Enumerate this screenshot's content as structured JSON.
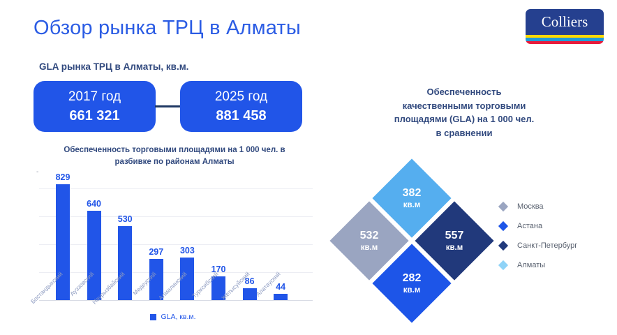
{
  "header": {
    "title": "Обзор рынка ТРЦ в Алматы",
    "logo_text": "Colliers",
    "logo_colors": {
      "box": "#25408f",
      "stripes": [
        "#ffd800",
        "#1f9cd8",
        "#e81a3b"
      ]
    }
  },
  "gla_section": {
    "title": "GLA рынка ТРЦ в Алматы, кв.м.",
    "boxes": [
      {
        "year": "2017 год",
        "value": "661 321"
      },
      {
        "year": "2025 год",
        "value": "881 458"
      }
    ],
    "box_color": "#2155e8"
  },
  "chart_data": [
    {
      "type": "bar",
      "title": "Обеспеченность торговыми площадями на 1 000 чел. в\nразбивке по районам Алматы",
      "categories": [
        "Бостандыкский",
        "Ауэзовский",
        "Наурызбайский",
        "Медеуский",
        "Алмалинский",
        "Турксибский",
        "Жетысуйский",
        "Алатауский"
      ],
      "values": [
        829,
        640,
        530,
        297,
        303,
        170,
        86,
        44
      ],
      "xlabel": "",
      "ylabel": "",
      "ylim": [
        0,
        900
      ],
      "grid": true,
      "y_axis_tick": "-",
      "bar_color": "#2155e8",
      "legend": {
        "label": "GLA, кв.м.",
        "color": "#2155e8",
        "position": "bottom"
      }
    },
    {
      "type": "diamond-comparison",
      "title": "Обеспеченность\nкачественными торговыми\nплощадями (GLA) на 1 000 чел.\nв сравнении",
      "series": [
        {
          "name": "Алматы",
          "value": "382",
          "unit": "кв.м",
          "color": "#55aeef",
          "position": "top"
        },
        {
          "name": "Москва",
          "value": "532",
          "unit": "кв.м",
          "color": "#9aa5c1",
          "position": "left"
        },
        {
          "name": "Санкт-Петербург",
          "value": "557",
          "unit": "кв.м",
          "color": "#21397b",
          "position": "right"
        },
        {
          "name": "Астана",
          "value": "282",
          "unit": "кв.м",
          "color": "#1d55e8",
          "position": "bottom"
        }
      ],
      "legend": [
        {
          "label": "Москва",
          "color": "#9aa5c1"
        },
        {
          "label": "Астана",
          "color": "#1d55e8"
        },
        {
          "label": "Санкт-Петербург",
          "color": "#21397b"
        },
        {
          "label": "Алматы",
          "color": "#8fd3f7"
        }
      ],
      "legend_position": "right"
    }
  ]
}
